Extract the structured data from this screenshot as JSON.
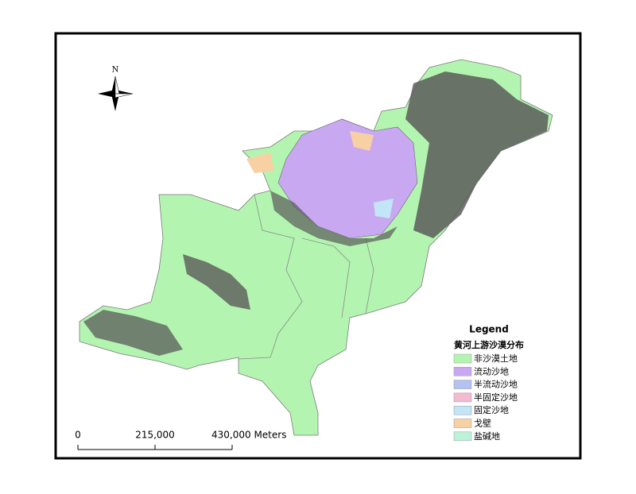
{
  "north_label": "N",
  "legend": {
    "title": "Legend",
    "subtitle": "黄河上游沙漠分布",
    "items": [
      {
        "label": "非沙漠土地",
        "color": "#b3f5b0"
      },
      {
        "label": "流动沙地",
        "color": "#c9a8f2"
      },
      {
        "label": "半流动沙地",
        "color": "#b3c2f2"
      },
      {
        "label": "半固定沙地",
        "color": "#f5b9d2"
      },
      {
        "label": "固定沙地",
        "color": "#c2e6f7"
      },
      {
        "label": "戈壁",
        "color": "#f7d1a3"
      },
      {
        "label": "盐碱地",
        "color": "#bdf2da"
      }
    ]
  },
  "scale_bar": {
    "labels": [
      "0",
      "215,000",
      "430,000 Meters"
    ]
  }
}
